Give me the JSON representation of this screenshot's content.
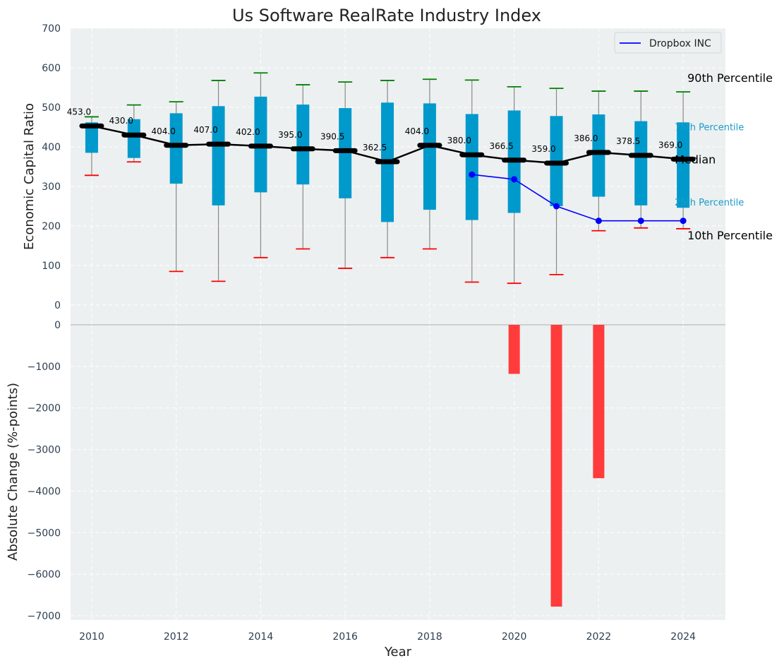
{
  "chart_data": [
    {
      "type": "box",
      "title": "Us Software RealRate Industry Index",
      "ylabel": "Economic Capital Ratio",
      "ylim": [
        0,
        700
      ],
      "yticks": [
        0,
        100,
        200,
        300,
        400,
        500,
        600,
        700
      ],
      "grid": true,
      "legend": {
        "placement": "top-right",
        "entries": [
          "Dropbox INC"
        ]
      },
      "years": [
        2010,
        2011,
        2012,
        2013,
        2014,
        2015,
        2016,
        2017,
        2018,
        2019,
        2020,
        2021,
        2022,
        2023,
        2024
      ],
      "p10": [
        328,
        362,
        85,
        60,
        120,
        142,
        93,
        120,
        142,
        58,
        55,
        77,
        188,
        195,
        193
      ],
      "p25": [
        385,
        372,
        307,
        252,
        285,
        305,
        270,
        210,
        241,
        215,
        233,
        250,
        274,
        252,
        246
      ],
      "median": [
        453.0,
        430.0,
        404.0,
        407.0,
        402.0,
        395.0,
        390.5,
        362.5,
        404.0,
        380.0,
        366.5,
        359.0,
        386.0,
        378.5,
        369.0
      ],
      "median_labels": [
        "453.0",
        "430.0",
        "404.0",
        "407.0",
        "402.0",
        "395.0",
        "390.5",
        "362.5",
        "404.0",
        "380.0",
        "366.5",
        "359.0",
        "386.0",
        "378.5",
        "369.0"
      ],
      "p75": [
        462,
        470,
        485,
        503,
        527,
        507,
        498,
        512,
        510,
        483,
        492,
        478,
        482,
        465,
        462
      ],
      "p90": [
        476,
        506,
        514,
        568,
        587,
        557,
        564,
        568,
        571,
        569,
        552,
        548,
        541,
        541,
        539
      ],
      "min": [
        328,
        362,
        85,
        60,
        120,
        142,
        93,
        120,
        142,
        58,
        55,
        77,
        188,
        195,
        193
      ],
      "max": [
        476,
        506,
        514,
        568,
        587,
        557,
        564,
        568,
        571,
        569,
        552,
        548,
        541,
        541,
        539
      ],
      "series": [
        {
          "name": "Dropbox INC",
          "x": [
            2019,
            2020,
            2021,
            2022,
            2023,
            2024
          ],
          "y": [
            330,
            318,
            250,
            213,
            213,
            213
          ]
        }
      ],
      "percentile_labels": {
        "p90": "90th Percentile",
        "p75": "75th Percentile",
        "median": "Median",
        "p25": "25th Percentile",
        "p10": "10th Percentile"
      },
      "colors": {
        "box": "#0099cc",
        "median": "#000000",
        "p90_cap": "#008000",
        "p10_cap": "#ff0000",
        "whisker": "#8a8a8a",
        "company": "#0000ff",
        "background": "#ecf0f1"
      }
    },
    {
      "type": "bar",
      "xlabel": "Year",
      "ylabel": "Absolute Change (%-points)",
      "ylim": [
        -7000,
        0
      ],
      "yticks": [
        0,
        -1000,
        -2000,
        -3000,
        -4000,
        -5000,
        -6000,
        -7000
      ],
      "xticks": [
        2010,
        2012,
        2014,
        2016,
        2018,
        2020,
        2022,
        2024
      ],
      "grid": true,
      "x": [
        2020,
        2021,
        2022
      ],
      "values": [
        -1180,
        -6780,
        -3690
      ],
      "colors": {
        "bar": "#ff3b3b",
        "background": "#ecf0f1"
      }
    }
  ]
}
